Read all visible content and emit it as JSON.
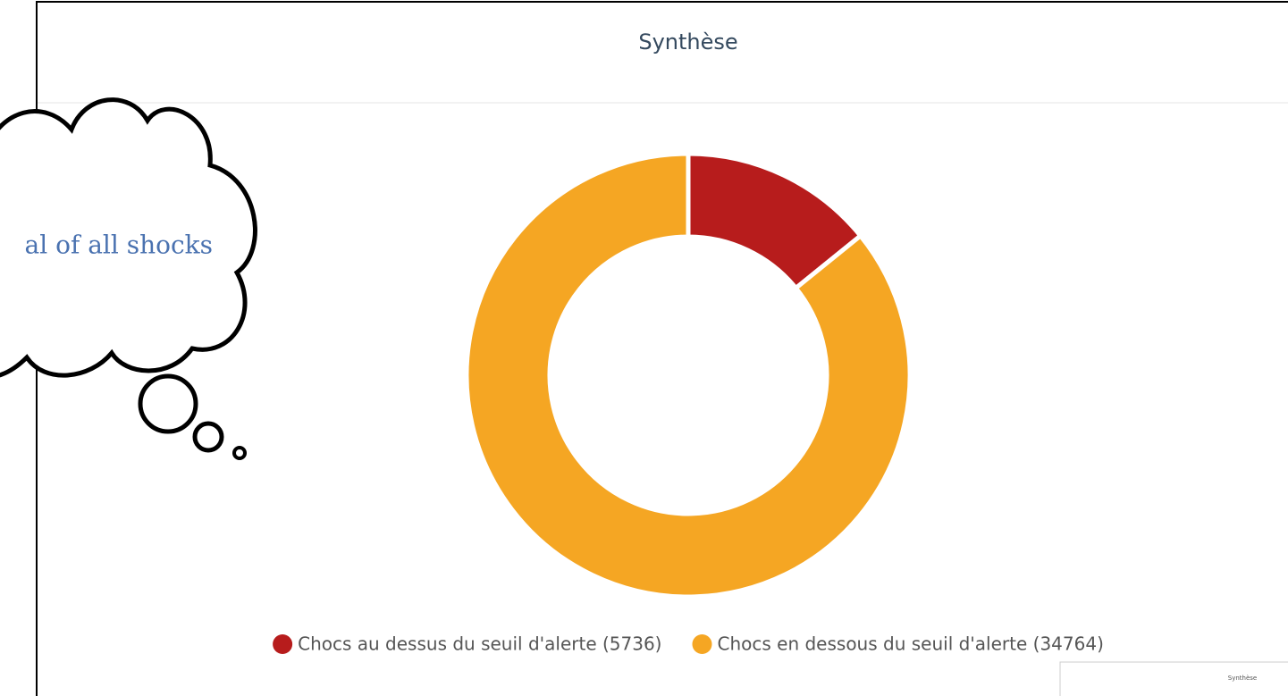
{
  "chart_data": {
    "type": "donut",
    "title": "Synthèse",
    "categories": [
      "Chocs au dessus du seuil d'alerte (5736)",
      "Chocs en dessous du seuil d'alerte (34764)"
    ],
    "values": [
      5736,
      34764
    ],
    "colors": [
      "#b71c1c",
      "#f5a623"
    ],
    "legend": "bottom",
    "annotation": "al of all shocks",
    "thumbnail_title": "Synthèse"
  }
}
